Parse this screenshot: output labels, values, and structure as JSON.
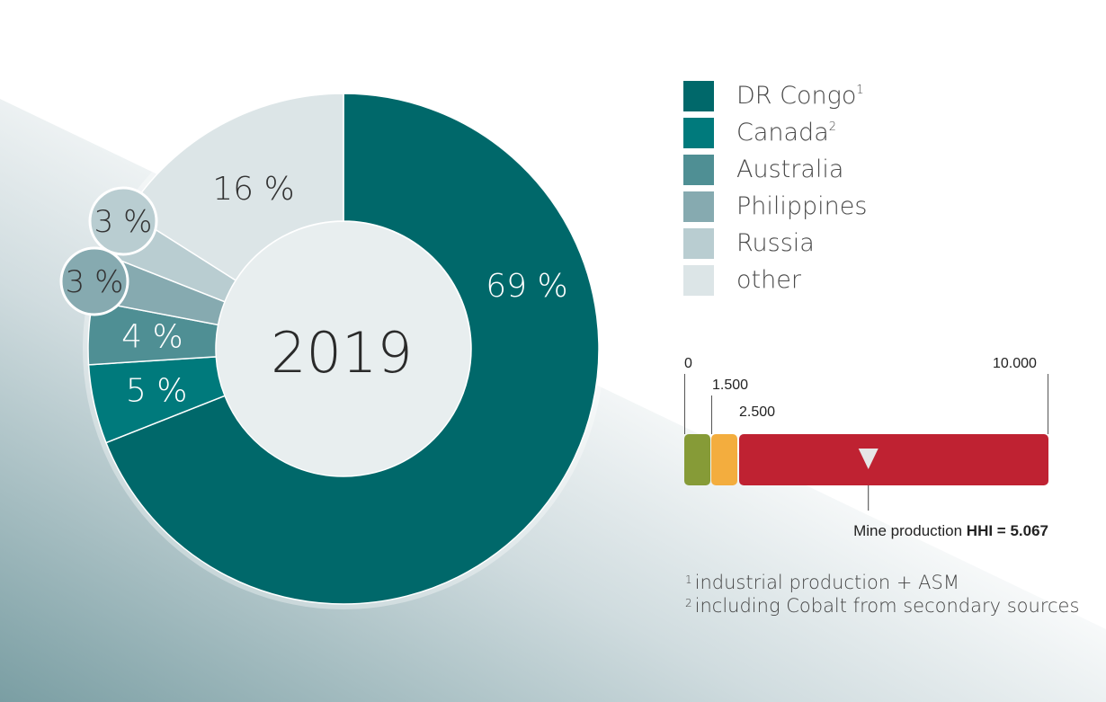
{
  "chart_data": {
    "type": "pie",
    "center_label": "2019",
    "slices": [
      {
        "name": "DR Congo",
        "value": 69,
        "label": "69 %",
        "color": "#00686a",
        "footnote": "1"
      },
      {
        "name": "Canada",
        "value": 5,
        "label": "5 %",
        "color": "#007a7c",
        "footnote": "2"
      },
      {
        "name": "Australia",
        "value": 4,
        "label": "4 %",
        "color": "#4f8f94"
      },
      {
        "name": "Philippines",
        "value": 3,
        "label": "3 %",
        "color": "#86aab0"
      },
      {
        "name": "Russia",
        "value": 3,
        "label": "3 %",
        "color": "#b9cdd1"
      },
      {
        "name": "other",
        "value": 16,
        "label": "16 %",
        "color": "#dce5e7"
      }
    ]
  },
  "legend": [
    {
      "label": "DR Congo",
      "sup": "1",
      "color": "#00686a"
    },
    {
      "label": "Canada",
      "sup": "2",
      "color": "#007a7c"
    },
    {
      "label": "Australia",
      "sup": "",
      "color": "#4f8f94"
    },
    {
      "label": "Philippines",
      "sup": "",
      "color": "#86aab0"
    },
    {
      "label": "Russia",
      "sup": "",
      "color": "#b9cdd1"
    },
    {
      "label": "other",
      "sup": "",
      "color": "#dce5e7"
    }
  ],
  "hhi": {
    "scale_min": 0,
    "scale_max": 10000,
    "thresholds": [
      1500,
      2500
    ],
    "tick_labels": {
      "min": "0",
      "t1": "1.500",
      "t2": "2.500",
      "max": "10.000"
    },
    "value": 5067,
    "caption_prefix": "Mine production ",
    "caption_bold": "HHI = 5.067",
    "colors": {
      "low": "#869b37",
      "medium": "#f3ad3e",
      "high": "#bf2232"
    }
  },
  "footnotes": [
    {
      "num": "1",
      "text": "industrial production + ASM"
    },
    {
      "num": "2",
      "text": "including Cobalt from secondary sources"
    }
  ]
}
